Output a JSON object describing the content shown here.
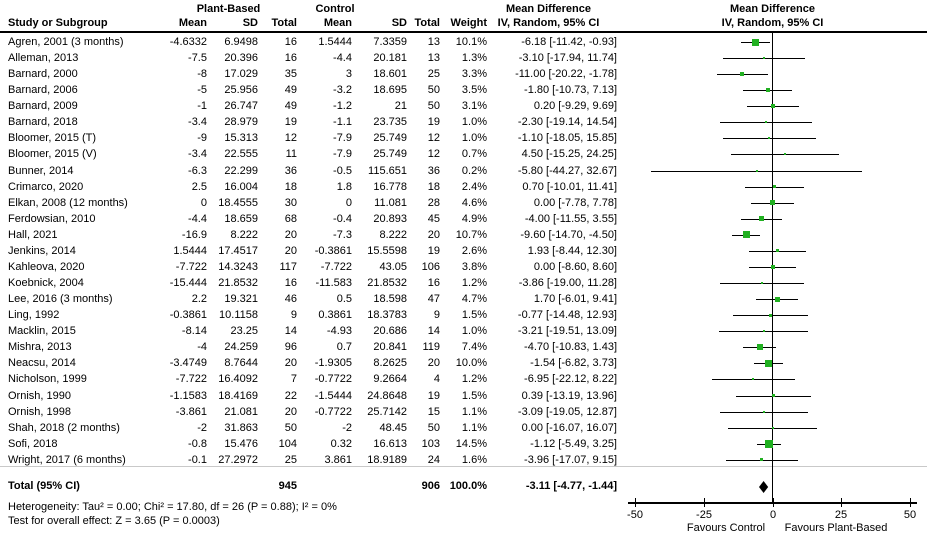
{
  "chart_data": {
    "type": "forest",
    "title": "",
    "header": {
      "study": "Study or Subgroup",
      "group1": "Plant-Based",
      "group2": "Control",
      "mean1": "Mean",
      "sd1": "SD",
      "n1": "Total",
      "mean2": "Mean",
      "sd2": "SD",
      "n2": "Total",
      "weight": "Weight",
      "md_line1": "Mean Difference",
      "md_line2": "IV, Random, 95% CI",
      "plot_line1": "Mean Difference",
      "plot_line2": "IV, Random, 95% CI"
    },
    "studies": [
      {
        "label": "Agren, 2001 (3 months)",
        "mean1": "-4.6332",
        "sd1": "6.9498",
        "n1": "16",
        "mean2": "1.5444",
        "sd2": "7.3359",
        "n2": "13",
        "weight": "10.1%",
        "ci_text": "-6.18 [-11.42, -0.93]",
        "md": -6.18,
        "lo": -11.42,
        "hi": -0.93,
        "w": 10.1
      },
      {
        "label": "Alleman, 2013",
        "mean1": "-7.5",
        "sd1": "20.396",
        "n1": "16",
        "mean2": "-4.4",
        "sd2": "20.181",
        "n2": "13",
        "weight": "1.3%",
        "ci_text": "-3.10 [-17.94, 11.74]",
        "md": -3.1,
        "lo": -17.94,
        "hi": 11.74,
        "w": 1.3
      },
      {
        "label": "Barnard, 2000",
        "mean1": "-8",
        "sd1": "17.029",
        "n1": "35",
        "mean2": "3",
        "sd2": "18.601",
        "n2": "25",
        "weight": "3.3%",
        "ci_text": "-11.00 [-20.22, -1.78]",
        "md": -11.0,
        "lo": -20.22,
        "hi": -1.78,
        "w": 3.3
      },
      {
        "label": "Barnard, 2006",
        "mean1": "-5",
        "sd1": "25.956",
        "n1": "49",
        "mean2": "-3.2",
        "sd2": "18.695",
        "n2": "50",
        "weight": "3.5%",
        "ci_text": "-1.80 [-10.73, 7.13]",
        "md": -1.8,
        "lo": -10.73,
        "hi": 7.13,
        "w": 3.5
      },
      {
        "label": "Barnard, 2009",
        "mean1": "-1",
        "sd1": "26.747",
        "n1": "49",
        "mean2": "-1.2",
        "sd2": "21",
        "n2": "50",
        "weight": "3.1%",
        "ci_text": "0.20 [-9.29, 9.69]",
        "md": 0.2,
        "lo": -9.29,
        "hi": 9.69,
        "w": 3.1
      },
      {
        "label": "Barnard, 2018",
        "mean1": "-3.4",
        "sd1": "28.979",
        "n1": "19",
        "mean2": "-1.1",
        "sd2": "23.735",
        "n2": "19",
        "weight": "1.0%",
        "ci_text": "-2.30 [-19.14, 14.54]",
        "md": -2.3,
        "lo": -19.14,
        "hi": 14.54,
        "w": 1.0
      },
      {
        "label": "Bloomer, 2015 (T)",
        "mean1": "-9",
        "sd1": "15.313",
        "n1": "12",
        "mean2": "-7.9",
        "sd2": "25.749",
        "n2": "12",
        "weight": "1.0%",
        "ci_text": "-1.10 [-18.05, 15.85]",
        "md": -1.1,
        "lo": -18.05,
        "hi": 15.85,
        "w": 1.0
      },
      {
        "label": "Bloomer, 2015 (V)",
        "mean1": "-3.4",
        "sd1": "22.555",
        "n1": "11",
        "mean2": "-7.9",
        "sd2": "25.749",
        "n2": "12",
        "weight": "0.7%",
        "ci_text": "4.50 [-15.25, 24.25]",
        "md": 4.5,
        "lo": -15.25,
        "hi": 24.25,
        "w": 0.7
      },
      {
        "label": "Bunner, 2014",
        "mean1": "-6.3",
        "sd1": "22.299",
        "n1": "36",
        "mean2": "-0.5",
        "sd2": "115.651",
        "n2": "36",
        "weight": "0.2%",
        "ci_text": "-5.80 [-44.27, 32.67]",
        "md": -5.8,
        "lo": -44.27,
        "hi": 32.67,
        "w": 0.2
      },
      {
        "label": "Crimarco, 2020",
        "mean1": "2.5",
        "sd1": "16.004",
        "n1": "18",
        "mean2": "1.8",
        "sd2": "16.778",
        "n2": "18",
        "weight": "2.4%",
        "ci_text": "0.70 [-10.01, 11.41]",
        "md": 0.7,
        "lo": -10.01,
        "hi": 11.41,
        "w": 2.4
      },
      {
        "label": "Elkan, 2008 (12 months)",
        "mean1": "0",
        "sd1": "18.4555",
        "n1": "30",
        "mean2": "0",
        "sd2": "11.081",
        "n2": "28",
        "weight": "4.6%",
        "ci_text": "0.00 [-7.78, 7.78]",
        "md": 0.0,
        "lo": -7.78,
        "hi": 7.78,
        "w": 4.6
      },
      {
        "label": "Ferdowsian, 2010",
        "mean1": "-4.4",
        "sd1": "18.659",
        "n1": "68",
        "mean2": "-0.4",
        "sd2": "20.893",
        "n2": "45",
        "weight": "4.9%",
        "ci_text": "-4.00 [-11.55, 3.55]",
        "md": -4.0,
        "lo": -11.55,
        "hi": 3.55,
        "w": 4.9
      },
      {
        "label": "Hall, 2021",
        "mean1": "-16.9",
        "sd1": "8.222",
        "n1": "20",
        "mean2": "-7.3",
        "sd2": "8.222",
        "n2": "20",
        "weight": "10.7%",
        "ci_text": "-9.60 [-14.70, -4.50]",
        "md": -9.6,
        "lo": -14.7,
        "hi": -4.5,
        "w": 10.7
      },
      {
        "label": "Jenkins, 2014",
        "mean1": "1.5444",
        "sd1": "17.4517",
        "n1": "20",
        "mean2": "-0.3861",
        "sd2": "15.5598",
        "n2": "19",
        "weight": "2.6%",
        "ci_text": "1.93 [-8.44, 12.30]",
        "md": 1.93,
        "lo": -8.44,
        "hi": 12.3,
        "w": 2.6
      },
      {
        "label": "Kahleova, 2020",
        "mean1": "-7.722",
        "sd1": "14.3243",
        "n1": "117",
        "mean2": "-7.722",
        "sd2": "43.05",
        "n2": "106",
        "weight": "3.8%",
        "ci_text": "0.00 [-8.60, 8.60]",
        "md": 0.0,
        "lo": -8.6,
        "hi": 8.6,
        "w": 3.8
      },
      {
        "label": "Koebnick, 2004",
        "mean1": "-15.444",
        "sd1": "21.8532",
        "n1": "16",
        "mean2": "-11.583",
        "sd2": "21.8532",
        "n2": "16",
        "weight": "1.2%",
        "ci_text": "-3.86 [-19.00, 11.28]",
        "md": -3.86,
        "lo": -19.0,
        "hi": 11.28,
        "w": 1.2
      },
      {
        "label": "Lee, 2016 (3 months)",
        "mean1": "2.2",
        "sd1": "19.321",
        "n1": "46",
        "mean2": "0.5",
        "sd2": "18.598",
        "n2": "47",
        "weight": "4.7%",
        "ci_text": "1.70 [-6.01, 9.41]",
        "md": 1.7,
        "lo": -6.01,
        "hi": 9.41,
        "w": 4.7
      },
      {
        "label": "Ling, 1992",
        "mean1": "-0.3861",
        "sd1": "10.1158",
        "n1": "9",
        "mean2": "0.3861",
        "sd2": "18.3783",
        "n2": "9",
        "weight": "1.5%",
        "ci_text": "-0.77 [-14.48, 12.93]",
        "md": -0.77,
        "lo": -14.48,
        "hi": 12.93,
        "w": 1.5
      },
      {
        "label": "Macklin, 2015",
        "mean1": "-8.14",
        "sd1": "23.25",
        "n1": "14",
        "mean2": "-4.93",
        "sd2": "20.686",
        "n2": "14",
        "weight": "1.0%",
        "ci_text": "-3.21 [-19.51, 13.09]",
        "md": -3.21,
        "lo": -19.51,
        "hi": 13.09,
        "w": 1.0
      },
      {
        "label": "Mishra, 2013",
        "mean1": "-4",
        "sd1": "24.259",
        "n1": "96",
        "mean2": "0.7",
        "sd2": "20.841",
        "n2": "119",
        "weight": "7.4%",
        "ci_text": "-4.70 [-10.83, 1.43]",
        "md": -4.7,
        "lo": -10.83,
        "hi": 1.43,
        "w": 7.4
      },
      {
        "label": "Neacsu, 2014",
        "mean1": "-3.4749",
        "sd1": "8.7644",
        "n1": "20",
        "mean2": "-1.9305",
        "sd2": "8.2625",
        "n2": "20",
        "weight": "10.0%",
        "ci_text": "-1.54 [-6.82, 3.73]",
        "md": -1.54,
        "lo": -6.82,
        "hi": 3.73,
        "w": 10.0
      },
      {
        "label": "Nicholson, 1999",
        "mean1": "-7.722",
        "sd1": "16.4092",
        "n1": "7",
        "mean2": "-0.7722",
        "sd2": "9.2664",
        "n2": "4",
        "weight": "1.2%",
        "ci_text": "-6.95 [-22.12, 8.22]",
        "md": -6.95,
        "lo": -22.12,
        "hi": 8.22,
        "w": 1.2
      },
      {
        "label": "Ornish, 1990",
        "mean1": "-1.1583",
        "sd1": "18.4169",
        "n1": "22",
        "mean2": "-1.5444",
        "sd2": "24.8648",
        "n2": "19",
        "weight": "1.5%",
        "ci_text": "0.39 [-13.19, 13.96]",
        "md": 0.39,
        "lo": -13.19,
        "hi": 13.96,
        "w": 1.5
      },
      {
        "label": "Ornish, 1998",
        "mean1": "-3.861",
        "sd1": "21.081",
        "n1": "20",
        "mean2": "-0.7722",
        "sd2": "25.7142",
        "n2": "15",
        "weight": "1.1%",
        "ci_text": "-3.09 [-19.05, 12.87]",
        "md": -3.09,
        "lo": -19.05,
        "hi": 12.87,
        "w": 1.1
      },
      {
        "label": "Shah, 2018 (2 months)",
        "mean1": "-2",
        "sd1": "31.863",
        "n1": "50",
        "mean2": "-2",
        "sd2": "48.45",
        "n2": "50",
        "weight": "1.1%",
        "ci_text": "0.00 [-16.07, 16.07]",
        "md": 0.0,
        "lo": -16.07,
        "hi": 16.07,
        "w": 1.1
      },
      {
        "label": "Sofi, 2018",
        "mean1": "-0.8",
        "sd1": "15.476",
        "n1": "104",
        "mean2": "0.32",
        "sd2": "16.613",
        "n2": "103",
        "weight": "14.5%",
        "ci_text": "-1.12 [-5.49, 3.25]",
        "md": -1.12,
        "lo": -5.49,
        "hi": 3.25,
        "w": 14.5
      },
      {
        "label": "Wright, 2017 (6 months)",
        "mean1": "-0.1",
        "sd1": "27.2972",
        "n1": "25",
        "mean2": "3.861",
        "sd2": "18.9189",
        "n2": "24",
        "weight": "1.6%",
        "ci_text": "-3.96 [-17.07, 9.15]",
        "md": -3.96,
        "lo": -17.07,
        "hi": 9.15,
        "w": 1.6
      }
    ],
    "total": {
      "label": "Total (95% CI)",
      "n1": "945",
      "n2": "906",
      "weight": "100.0%",
      "ci_text": "-3.11 [-4.77, -1.44]",
      "md": -3.11,
      "lo": -4.77,
      "hi": -1.44
    },
    "heterogeneity": "Heterogeneity: Tau² = 0.00; Chi² = 17.80, df = 26 (P = 0.88); I² = 0%",
    "overall_test": "Test for overall effect: Z = 3.65 (P = 0.0003)",
    "axis": {
      "min": -50,
      "max": 50,
      "ticks": [
        -50,
        -25,
        0,
        25,
        50
      ],
      "left_label": "Favours Control",
      "right_label": "Favours Plant-Based"
    },
    "colors": {
      "square": "#21b021",
      "diamond": "#000000",
      "line": "#000000"
    }
  }
}
